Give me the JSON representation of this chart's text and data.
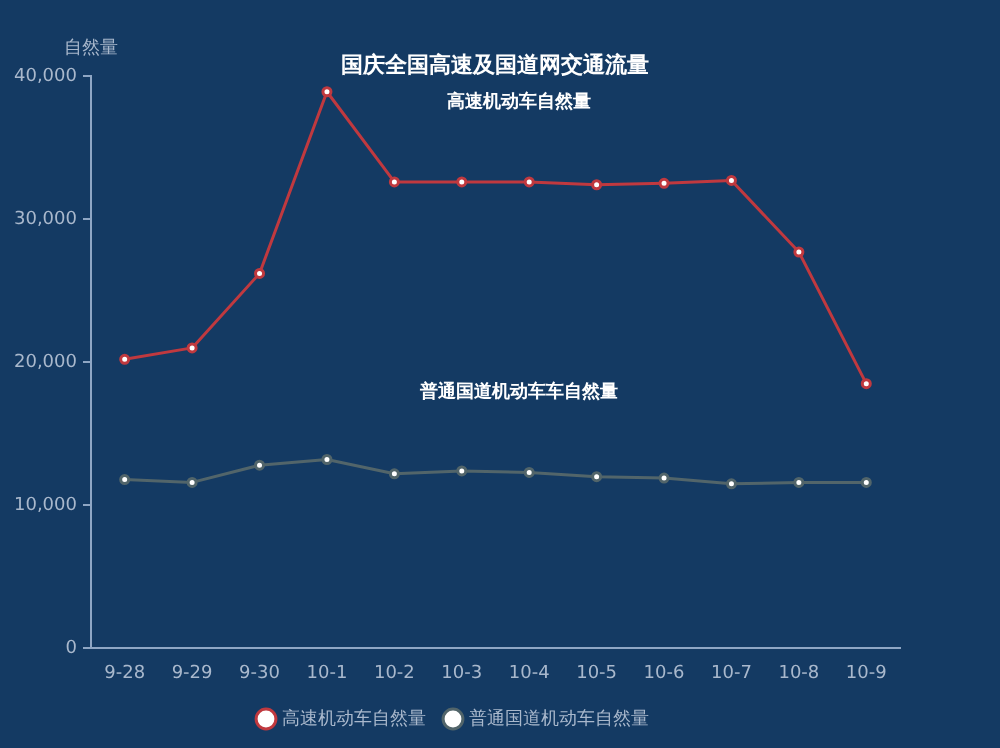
{
  "chart_data": {
    "type": "line",
    "title": "国庆全国高速及国道网交通流量",
    "ylabel": "自然量",
    "categories": [
      "9-28",
      "9-29",
      "9-30",
      "10-1",
      "10-2",
      "10-3",
      "10-4",
      "10-5",
      "10-6",
      "10-7",
      "10-8",
      "10-9"
    ],
    "series": [
      {
        "name": "高速机动车自然量",
        "color": "#c0393f",
        "values": [
          20200,
          21000,
          26200,
          38900,
          32600,
          32600,
          32600,
          32400,
          32500,
          32700,
          27700,
          18500
        ]
      },
      {
        "name": "普通国道机动车自然量",
        "color": "#52656a",
        "values": [
          11800,
          11600,
          12800,
          13200,
          12200,
          12400,
          12300,
          12000,
          11900,
          11500,
          11600,
          11600
        ]
      }
    ],
    "ylim": [
      0,
      40000
    ],
    "yticks": [
      {
        "value": 0,
        "label": "0"
      },
      {
        "value": 10000,
        "label": "10,000"
      },
      {
        "value": 20000,
        "label": "20,000"
      },
      {
        "value": 30000,
        "label": "30,000"
      },
      {
        "value": 40000,
        "label": "40,000"
      }
    ],
    "annotations": [
      "高速机动车自然量",
      "普通国道机动车车自然量"
    ],
    "grid": false,
    "legend": "bottom",
    "marker": "circle",
    "line_style": "solid"
  }
}
